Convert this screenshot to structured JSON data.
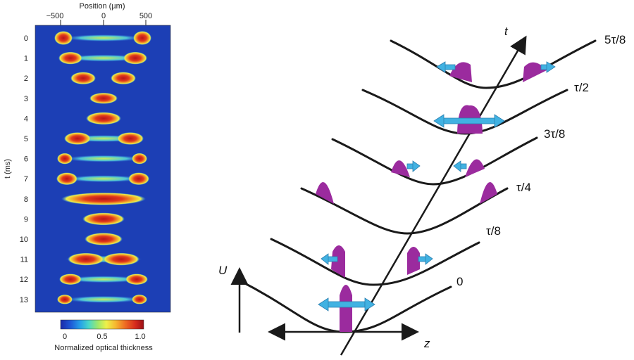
{
  "left_panel": {
    "top_axis_title": "Position (µm)",
    "top_ticks": [
      "−500",
      "0",
      "500"
    ],
    "y_axis_title": "t (ms)",
    "rows": [
      "0",
      "1",
      "2",
      "3",
      "4",
      "5",
      "6",
      "7",
      "8",
      "9",
      "10",
      "11",
      "12",
      "13"
    ],
    "colorbar_ticks": [
      "0",
      "0.5",
      "1.0"
    ],
    "colorbar_label": "Normalized optical thickness",
    "colors": {
      "background": "#1c3fb5",
      "low": "#2a64d8",
      "mid": "#f2e84a",
      "high": "#c8161b",
      "colorbar": [
        "#1a2aa8",
        "#1f58d6",
        "#27a3e8",
        "#4ad8c8",
        "#9fe86a",
        "#eef04a",
        "#f6b830",
        "#ee6a22",
        "#d62a1c",
        "#9a0f16"
      ]
    }
  },
  "right_panel": {
    "axis_U": "U",
    "axis_z": "z",
    "axis_t": "t",
    "time_labels": [
      "0",
      "τ/8",
      "τ/4",
      "3τ/8",
      "τ/2",
      "5τ/8"
    ],
    "colors": {
      "cloud": "#9b2b9e",
      "arrow": "#41b2e2",
      "line": "#1a1a1a"
    }
  }
}
